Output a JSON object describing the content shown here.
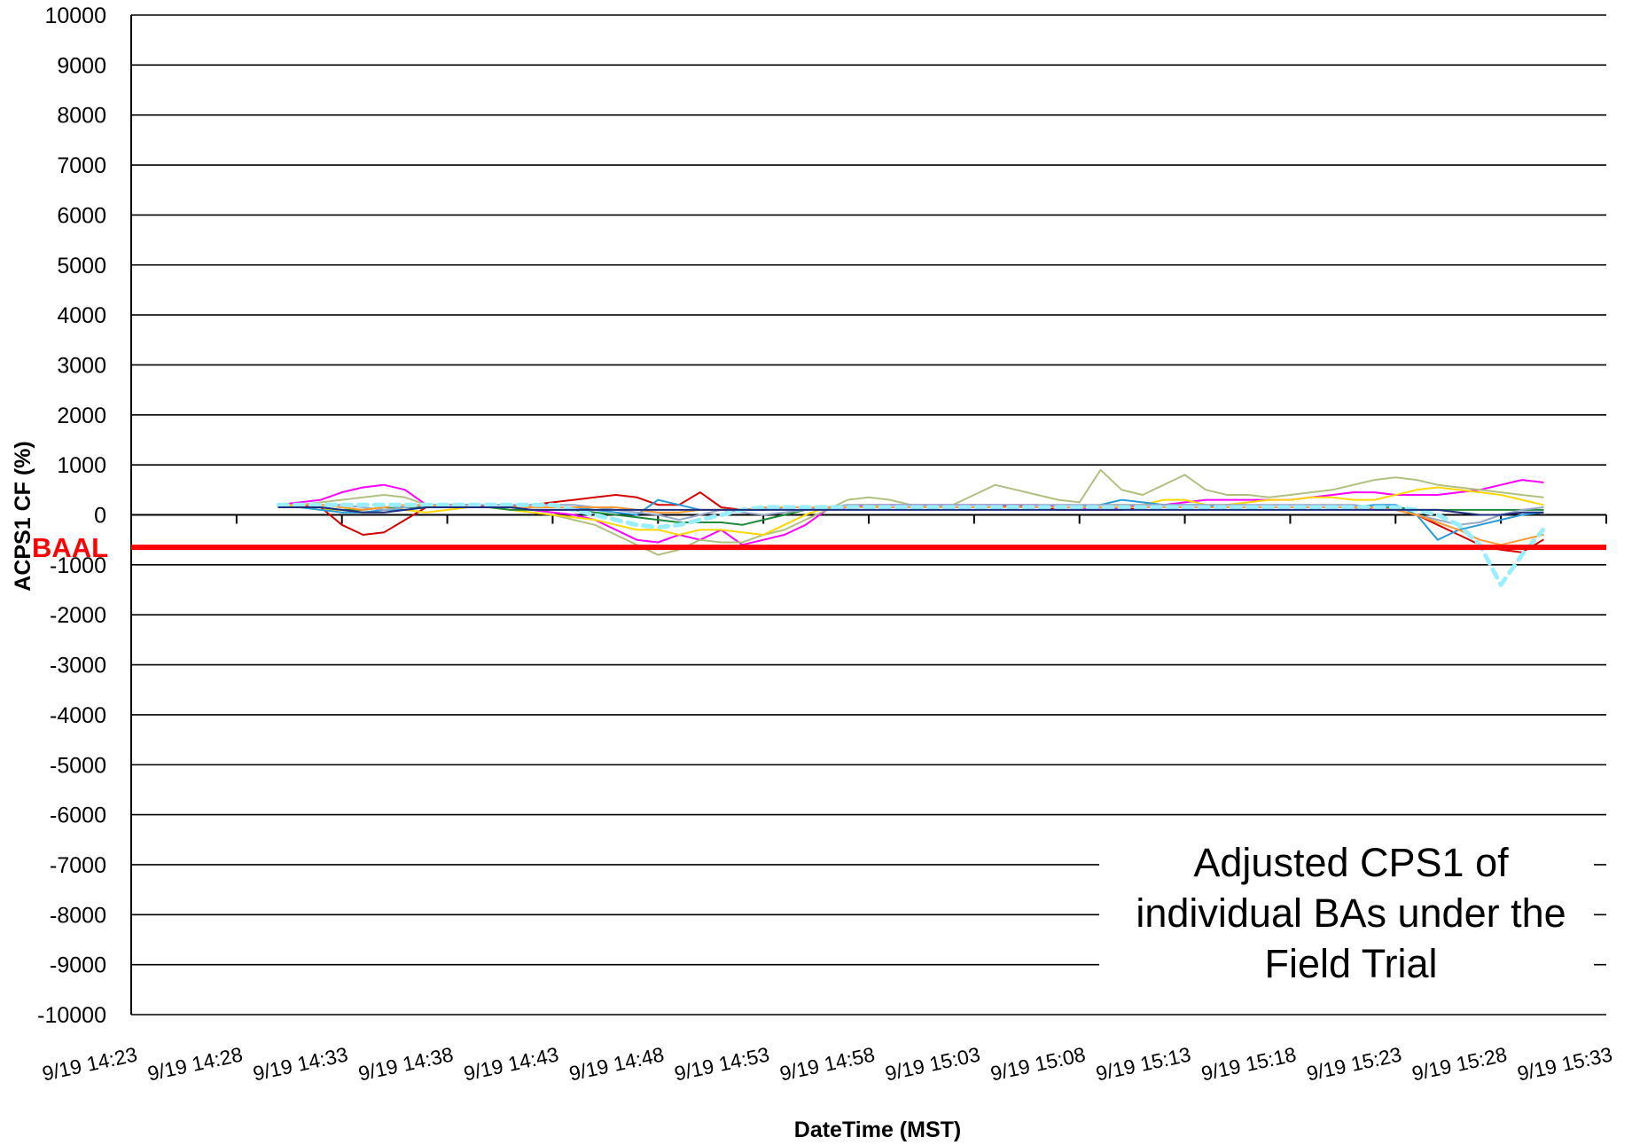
{
  "chart_data": {
    "type": "line",
    "xlabel": "DateTime (MST)",
    "ylabel": "ACPS1 CF (%)",
    "ylim": [
      -10000,
      10000
    ],
    "yticks": [
      10000,
      9000,
      8000,
      7000,
      6000,
      5000,
      4000,
      3000,
      2000,
      1000,
      0,
      -1000,
      -2000,
      -3000,
      -4000,
      -5000,
      -6000,
      -7000,
      -8000,
      -9000,
      -10000
    ],
    "xticks": [
      "9/19 14:23",
      "9/19 14:28",
      "9/19 14:33",
      "9/19 14:38",
      "9/19 14:43",
      "9/19 14:48",
      "9/19 14:53",
      "9/19 14:58",
      "9/19 15:03",
      "9/19 15:08",
      "9/19 15:13",
      "9/19 15:18",
      "9/19 15:23",
      "9/19 15:28",
      "9/19 15:33"
    ],
    "x": [
      "9/19 14:30",
      "9/19 14:31",
      "9/19 14:32",
      "9/19 14:33",
      "9/19 14:34",
      "9/19 14:35",
      "9/19 14:36",
      "9/19 14:37",
      "9/19 14:38",
      "9/19 14:39",
      "9/19 14:40",
      "9/19 14:41",
      "9/19 14:42",
      "9/19 14:43",
      "9/19 14:44",
      "9/19 14:45",
      "9/19 14:46",
      "9/19 14:47",
      "9/19 14:48",
      "9/19 14:49",
      "9/19 14:50",
      "9/19 14:51",
      "9/19 14:52",
      "9/19 14:53",
      "9/19 14:54",
      "9/19 14:55",
      "9/19 14:56",
      "9/19 14:57",
      "9/19 14:58",
      "9/19 14:59",
      "9/19 15:00",
      "9/19 15:01",
      "9/19 15:02",
      "9/19 15:03",
      "9/19 15:04",
      "9/19 15:05",
      "9/19 15:06",
      "9/19 15:07",
      "9/19 15:08",
      "9/19 15:09",
      "9/19 15:10",
      "9/19 15:11",
      "9/19 15:12",
      "9/19 15:13",
      "9/19 15:14",
      "9/19 15:15",
      "9/19 15:16",
      "9/19 15:17",
      "9/19 15:18",
      "9/19 15:19",
      "9/19 15:20",
      "9/19 15:21",
      "9/19 15:22",
      "9/19 15:23",
      "9/19 15:24",
      "9/19 15:25",
      "9/19 15:26",
      "9/19 15:27",
      "9/19 15:28",
      "9/19 15:29",
      "9/19 15:30"
    ],
    "series": [
      {
        "color": "#ff00ff",
        "values": [
          200,
          250,
          300,
          450,
          550,
          600,
          500,
          200,
          150,
          150,
          150,
          150,
          100,
          50,
          0,
          -100,
          -300,
          -500,
          -550,
          -400,
          -500,
          -300,
          -600,
          -500,
          -400,
          -200,
          100,
          150,
          200,
          200,
          200,
          200,
          200,
          200,
          200,
          200,
          200,
          150,
          150,
          100,
          150,
          200,
          200,
          250,
          300,
          300,
          300,
          300,
          300,
          350,
          400,
          450,
          450,
          400,
          400,
          400,
          450,
          500,
          600,
          700,
          650
        ]
      },
      {
        "color": "#d40000",
        "values": [
          200,
          200,
          150,
          -200,
          -400,
          -350,
          -100,
          150,
          200,
          200,
          150,
          150,
          200,
          250,
          300,
          350,
          400,
          350,
          200,
          200,
          450,
          150,
          100,
          100,
          150,
          150,
          150,
          150,
          150,
          150,
          150,
          150,
          150,
          150,
          150,
          200,
          150,
          100,
          100,
          100,
          100,
          150,
          150,
          150,
          150,
          150,
          150,
          150,
          150,
          150,
          150,
          150,
          100,
          100,
          0,
          -200,
          -400,
          -600,
          -700,
          -750,
          -500
        ]
      },
      {
        "color": "#b0c080",
        "values": [
          200,
          200,
          250,
          300,
          350,
          400,
          350,
          200,
          200,
          150,
          150,
          100,
          50,
          0,
          -100,
          -200,
          -400,
          -600,
          -800,
          -700,
          -500,
          -550,
          -550,
          -400,
          -300,
          -100,
          100,
          300,
          350,
          300,
          200,
          150,
          200,
          400,
          600,
          500,
          400,
          300,
          250,
          900,
          500,
          400,
          600,
          800,
          500,
          400,
          400,
          350,
          400,
          450,
          500,
          600,
          700,
          750,
          700,
          600,
          550,
          500,
          450,
          400,
          350
        ]
      },
      {
        "color": "#ffd700",
        "values": [
          200,
          150,
          100,
          100,
          100,
          150,
          100,
          50,
          100,
          150,
          150,
          100,
          50,
          0,
          -50,
          -100,
          -200,
          -300,
          -300,
          -400,
          -300,
          -300,
          -350,
          -400,
          -200,
          0,
          150,
          200,
          200,
          150,
          150,
          150,
          150,
          150,
          150,
          150,
          150,
          150,
          150,
          200,
          200,
          200,
          300,
          300,
          200,
          200,
          250,
          300,
          300,
          350,
          350,
          300,
          300,
          400,
          500,
          550,
          500,
          450,
          400,
          300,
          200
        ]
      },
      {
        "color": "#2a9bd6",
        "values": [
          150,
          150,
          100,
          50,
          50,
          100,
          100,
          150,
          150,
          150,
          150,
          150,
          150,
          150,
          150,
          100,
          50,
          0,
          300,
          200,
          100,
          100,
          100,
          100,
          150,
          150,
          150,
          150,
          150,
          150,
          150,
          150,
          150,
          150,
          150,
          150,
          150,
          150,
          150,
          200,
          300,
          250,
          200,
          200,
          200,
          150,
          150,
          150,
          150,
          150,
          150,
          150,
          200,
          200,
          0,
          -500,
          -300,
          -200,
          -100,
          0,
          50
        ]
      },
      {
        "color": "#1e8a3c",
        "values": [
          150,
          150,
          150,
          100,
          100,
          150,
          150,
          150,
          150,
          150,
          150,
          100,
          100,
          100,
          100,
          50,
          0,
          -50,
          -100,
          -150,
          -150,
          -150,
          -200,
          -100,
          0,
          100,
          150,
          150,
          150,
          150,
          150,
          150,
          150,
          150,
          150,
          150,
          150,
          150,
          150,
          150,
          150,
          150,
          150,
          150,
          150,
          150,
          150,
          150,
          150,
          150,
          150,
          150,
          150,
          150,
          100,
          100,
          100,
          100,
          100,
          100,
          100
        ]
      },
      {
        "color": "#9aa8c8",
        "values": [
          200,
          200,
          200,
          200,
          150,
          100,
          150,
          200,
          200,
          200,
          200,
          200,
          200,
          200,
          200,
          150,
          100,
          50,
          0,
          -100,
          0,
          100,
          50,
          0,
          50,
          100,
          150,
          200,
          200,
          200,
          200,
          200,
          200,
          200,
          200,
          200,
          200,
          200,
          200,
          200,
          200,
          200,
          200,
          200,
          200,
          200,
          200,
          200,
          200,
          200,
          200,
          200,
          150,
          100,
          0,
          -100,
          -200,
          -150,
          0,
          100,
          150
        ]
      },
      {
        "color": "#ff9933",
        "values": [
          200,
          200,
          200,
          150,
          100,
          150,
          200,
          200,
          150,
          150,
          150,
          150,
          150,
          150,
          150,
          150,
          150,
          100,
          50,
          50,
          100,
          100,
          100,
          150,
          150,
          150,
          150,
          150,
          150,
          150,
          150,
          150,
          150,
          150,
          150,
          150,
          150,
          150,
          150,
          150,
          150,
          150,
          150,
          150,
          150,
          150,
          150,
          150,
          150,
          150,
          150,
          150,
          150,
          100,
          0,
          -150,
          -300,
          -500,
          -600,
          -500,
          -400
        ]
      },
      {
        "color": "#99eeff",
        "dashed": true,
        "values": [
          200,
          200,
          200,
          200,
          200,
          200,
          200,
          200,
          200,
          200,
          200,
          200,
          200,
          200,
          100,
          0,
          -100,
          -200,
          -250,
          -200,
          -100,
          0,
          100,
          150,
          150,
          150,
          150,
          150,
          150,
          150,
          150,
          150,
          150,
          150,
          150,
          150,
          150,
          150,
          150,
          150,
          150,
          150,
          150,
          150,
          150,
          150,
          150,
          150,
          150,
          150,
          150,
          150,
          150,
          150,
          100,
          0,
          -200,
          -600,
          -1400,
          -800,
          -300
        ]
      },
      {
        "color": "#1f2f7f",
        "values": [
          150,
          150,
          150,
          100,
          50,
          50,
          100,
          150,
          150,
          150,
          150,
          150,
          100,
          100,
          100,
          100,
          100,
          100,
          100,
          100,
          100,
          100,
          100,
          100,
          100,
          100,
          100,
          100,
          100,
          100,
          100,
          100,
          100,
          100,
          100,
          100,
          100,
          100,
          100,
          100,
          100,
          100,
          100,
          100,
          100,
          100,
          100,
          100,
          100,
          100,
          100,
          100,
          100,
          100,
          100,
          100,
          50,
          0,
          0,
          50,
          50
        ]
      }
    ],
    "reference_line": {
      "label": "BAAL",
      "value": -650,
      "color": "#ff0000"
    },
    "annotation": {
      "lines": [
        "Adjusted CPS1 of",
        "individual BAs under the",
        "Field Trial"
      ]
    },
    "grid": true
  }
}
